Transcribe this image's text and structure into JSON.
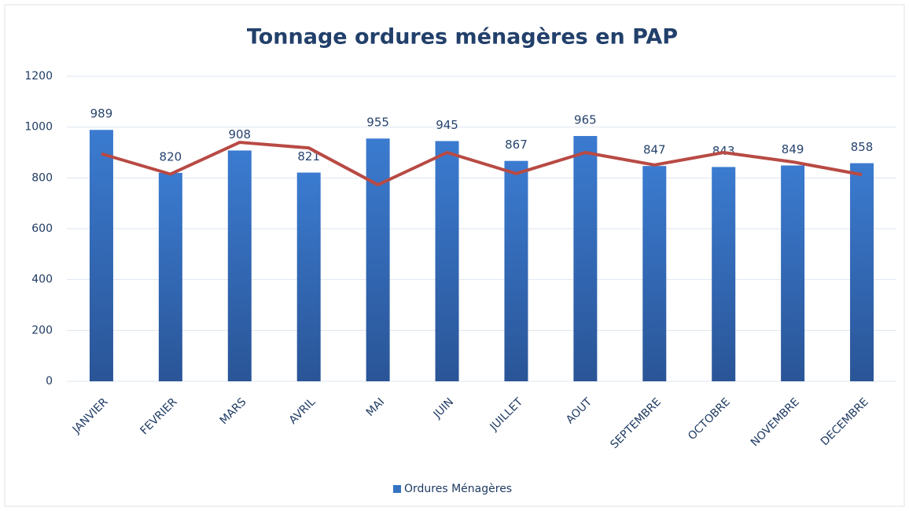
{
  "chart_data": {
    "type": "bar",
    "title": "Tonnage ordures ménagères en PAP",
    "categories": [
      "JANVIER",
      "FEVRIER",
      "MARS",
      "AVRIL",
      "MAI",
      "JUIN",
      "JUILLET",
      "AOUT",
      "SEPTEMBRE",
      "OCTOBRE",
      "NOVEMBRE",
      "DECEMBRE"
    ],
    "series": [
      {
        "name": "Ordures Ménagères",
        "type": "bar",
        "color": "#3572c2",
        "values": [
          989,
          820,
          908,
          821,
          955,
          945,
          867,
          965,
          847,
          843,
          849,
          858
        ]
      },
      {
        "type": "line",
        "color": "#b84a44",
        "values": [
          895,
          815,
          940,
          918,
          773,
          900,
          817,
          900,
          851,
          900,
          863,
          813
        ]
      }
    ],
    "ylim": [
      0,
      1200
    ],
    "yticks": [
      0,
      200,
      400,
      600,
      800,
      1000,
      1200
    ],
    "grid": true,
    "legend": "bottom"
  }
}
